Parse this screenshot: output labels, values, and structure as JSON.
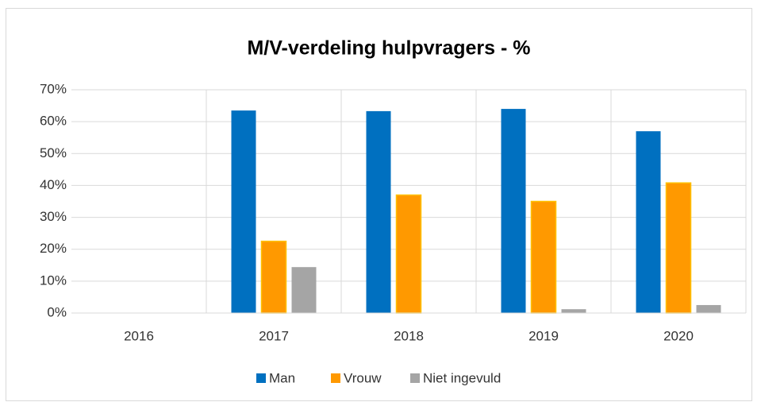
{
  "chart_data": {
    "type": "bar",
    "title": "M/V-verdeling hulpvragers - %",
    "categories": [
      "2016",
      "2017",
      "2018",
      "2019",
      "2020"
    ],
    "series": [
      {
        "name": "Man",
        "color": "#0070c0",
        "values": [
          0,
          63.5,
          63.3,
          64,
          57
        ]
      },
      {
        "name": "Vrouw",
        "color": "#ff9900",
        "values": [
          0,
          22.5,
          37,
          35,
          40.8
        ]
      },
      {
        "name": "Niet ingevuld",
        "color": "#a5a5a5",
        "values": [
          0,
          14.4,
          0,
          1.2,
          2.5
        ]
      }
    ],
    "ylim": [
      0,
      70
    ],
    "yticks": [
      {
        "value": 0,
        "label": "0%"
      },
      {
        "value": 10,
        "label": "10%"
      },
      {
        "value": 20,
        "label": "20%"
      },
      {
        "value": 30,
        "label": "30%"
      },
      {
        "value": 40,
        "label": "40%"
      },
      {
        "value": 50,
        "label": "50%"
      },
      {
        "value": 60,
        "label": "60%"
      },
      {
        "value": 70,
        "label": "70%"
      }
    ],
    "grid": true,
    "legend": "bottom"
  }
}
